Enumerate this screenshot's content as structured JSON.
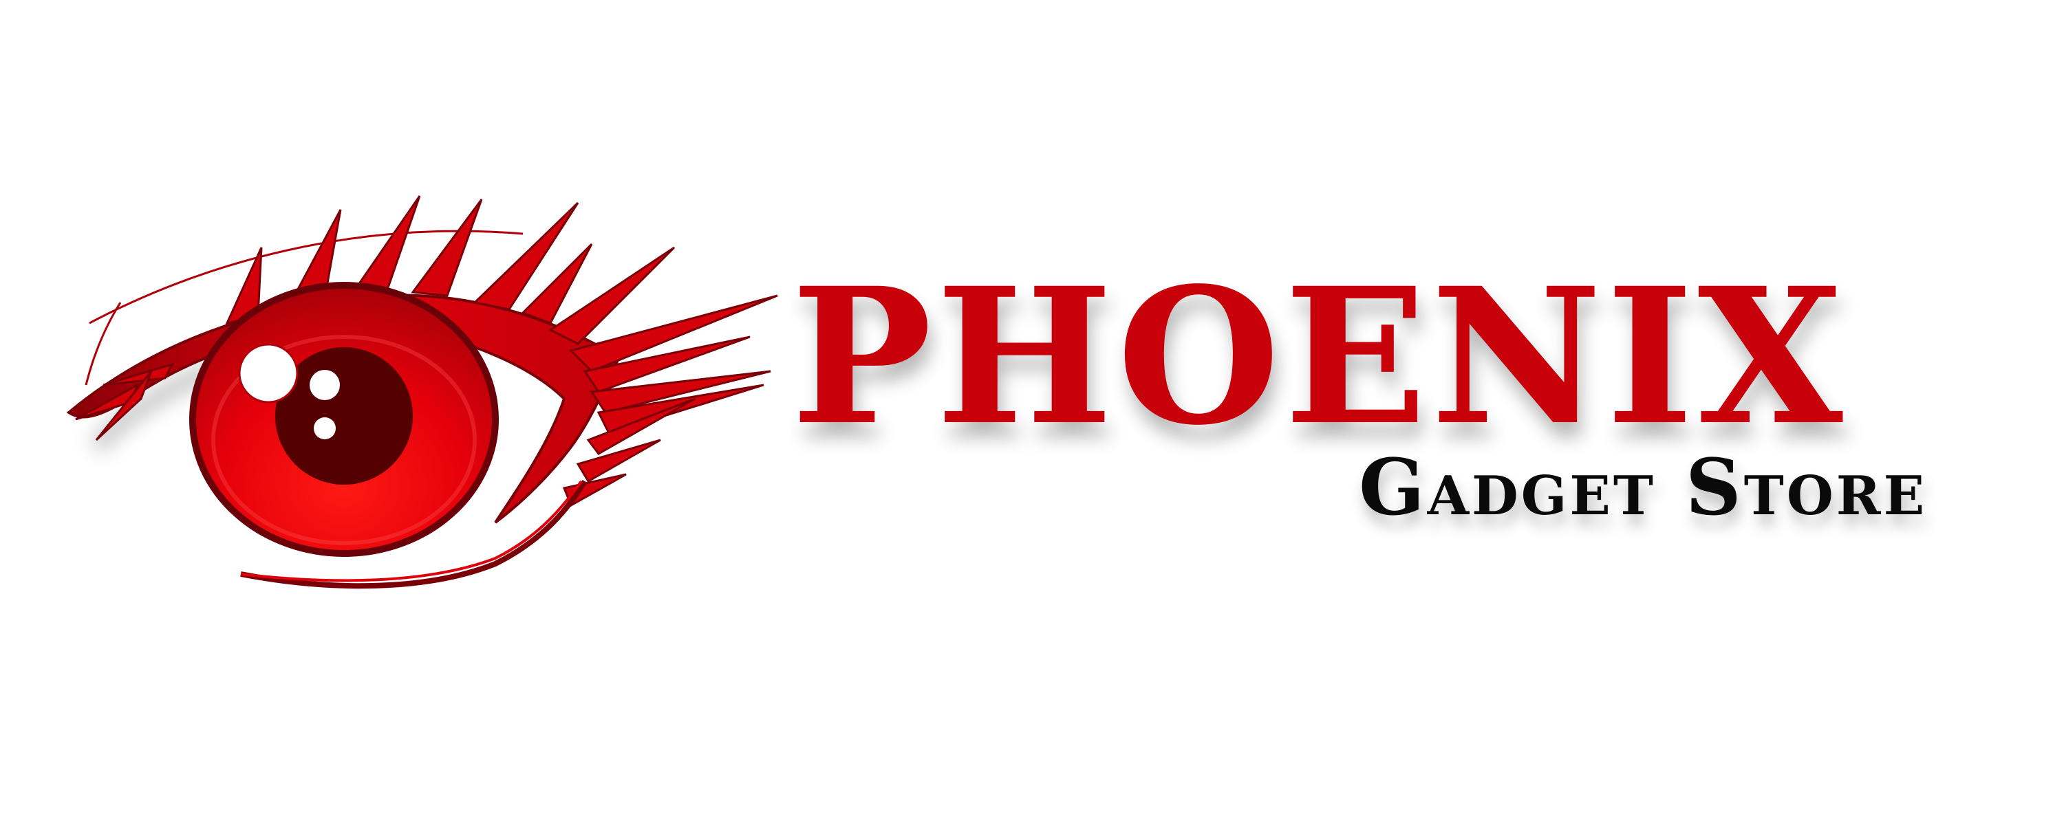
{
  "brand": {
    "name": "PHOENIX",
    "tagline": "Gadget Store"
  },
  "logo": {
    "icon": "eye-icon",
    "colors": {
      "brand_red": "#c8000a",
      "dark_red": "#7a0008",
      "pupil": "#550000",
      "text_black": "#0a0a0a",
      "background": "#ffffff"
    }
  }
}
